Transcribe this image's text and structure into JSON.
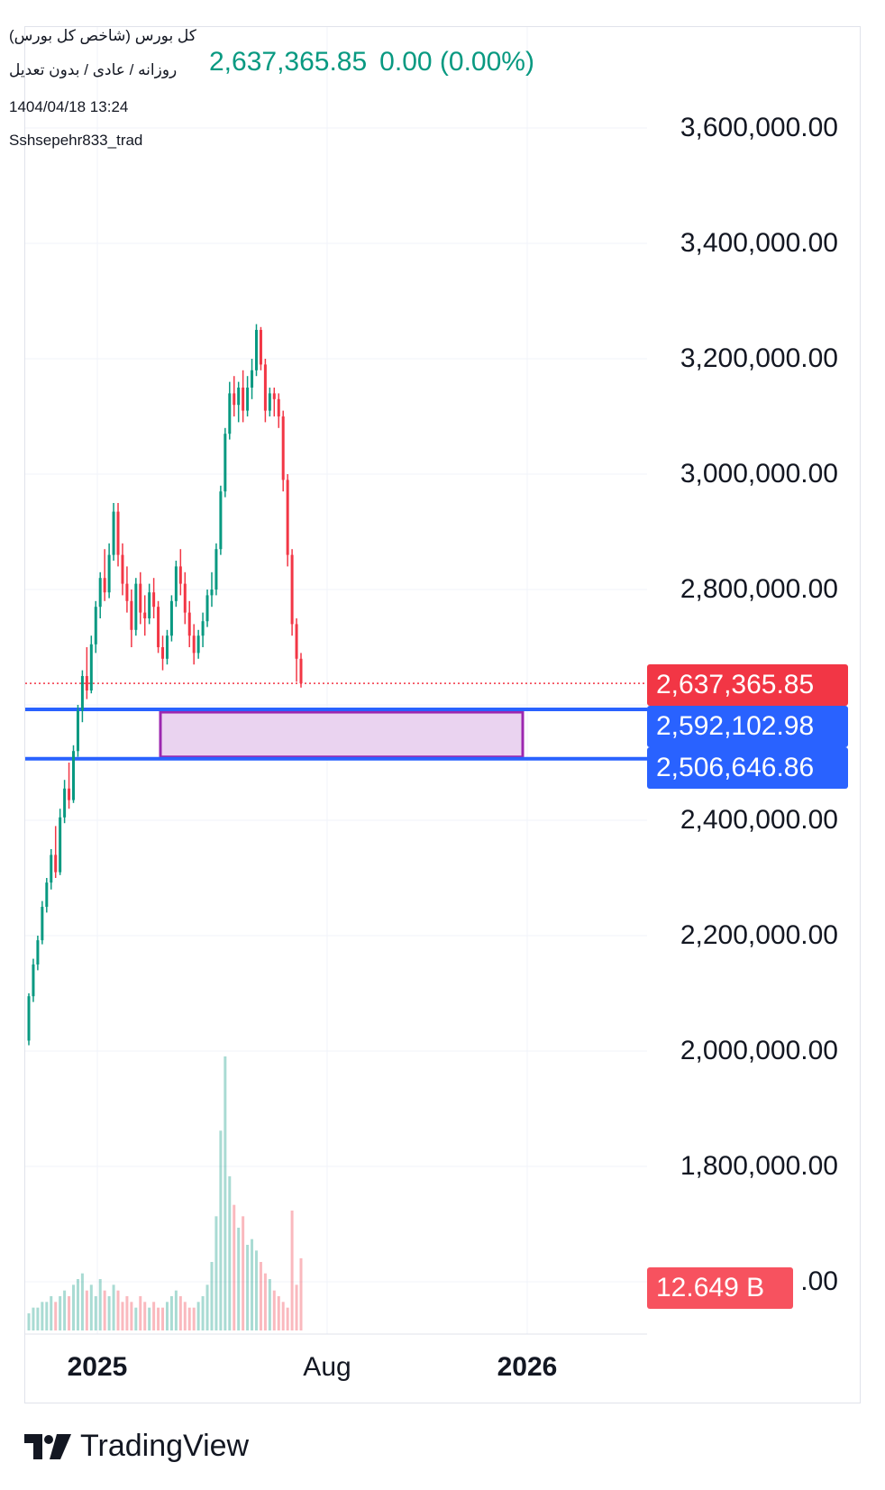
{
  "header": {
    "title": "کل بورس (شاخص کل بورس)",
    "interval": "روزانه / عادی / بدون تعدیل",
    "datetime": "1404/04/18 13:24",
    "user": "Sshsepehr833_trad",
    "price": "2,637,365.85",
    "change": "0.00 (0.00%)"
  },
  "colors": {
    "up": "#089981",
    "down": "#f23645",
    "box_fill": "#ead3f0",
    "box_border": "#9c27b0",
    "hline": "#2962ff",
    "last_price_tag": "#f23645",
    "hline_tag": "#2962ff",
    "volume_tag": "#f7525f"
  },
  "y_axis": {
    "labels": [
      "3,600,000.00",
      "3,400,000.00",
      "3,200,000.00",
      "3,000,000.00",
      "2,800,000.00",
      "2,400,000.00",
      "2,200,000.00",
      "2,000,000.00",
      "1,800,000.00",
      ".00"
    ]
  },
  "x_axis": {
    "labels": [
      {
        "text": "2025",
        "bold": true
      },
      {
        "text": "Aug",
        "bold": false
      },
      {
        "text": "2026",
        "bold": true
      }
    ]
  },
  "tags": {
    "last_price": "2,637,365.85",
    "hline_upper": "2,592,102.98",
    "hline_lower": "2,506,646.86",
    "volume": "12.649 B"
  },
  "branding": {
    "name": "TradingView"
  },
  "chart_data": {
    "type": "candlestick",
    "y_range": [
      1560000,
      3720000
    ],
    "last_price": 2637365.85,
    "horizontal_lines": [
      2592102.98,
      2506646.86
    ],
    "zone": {
      "top": 2592102.98,
      "bottom": 2506646.86
    },
    "candles": [
      [
        2018000,
        2100000,
        2010000,
        2095000
      ],
      [
        2095000,
        2160000,
        2085000,
        2150000
      ],
      [
        2150000,
        2200000,
        2140000,
        2192000
      ],
      [
        2192000,
        2260000,
        2185000,
        2250000
      ],
      [
        2250000,
        2300000,
        2240000,
        2292000
      ],
      [
        2292000,
        2350000,
        2280000,
        2340000
      ],
      [
        2340000,
        2390000,
        2300000,
        2310000
      ],
      [
        2310000,
        2420000,
        2305000,
        2405000
      ],
      [
        2405000,
        2470000,
        2395000,
        2455000
      ],
      [
        2455000,
        2500000,
        2420000,
        2435000
      ],
      [
        2435000,
        2530000,
        2430000,
        2520000
      ],
      [
        2520000,
        2600000,
        2510000,
        2590000
      ],
      [
        2590000,
        2660000,
        2570000,
        2650000
      ],
      [
        2650000,
        2700000,
        2610000,
        2625000
      ],
      [
        2625000,
        2720000,
        2620000,
        2705000
      ],
      [
        2705000,
        2780000,
        2690000,
        2770000
      ],
      [
        2770000,
        2830000,
        2750000,
        2820000
      ],
      [
        2820000,
        2870000,
        2780000,
        2795000
      ],
      [
        2795000,
        2880000,
        2785000,
        2860000
      ],
      [
        2860000,
        2950000,
        2850000,
        2935000
      ],
      [
        2935000,
        2950000,
        2840000,
        2860000
      ],
      [
        2860000,
        2880000,
        2790000,
        2810000
      ],
      [
        2810000,
        2840000,
        2760000,
        2780000
      ],
      [
        2780000,
        2800000,
        2700000,
        2730000
      ],
      [
        2730000,
        2820000,
        2720000,
        2810000
      ],
      [
        2810000,
        2830000,
        2740000,
        2760000
      ],
      [
        2760000,
        2790000,
        2720000,
        2750000
      ],
      [
        2750000,
        2810000,
        2740000,
        2795000
      ],
      [
        2795000,
        2820000,
        2750000,
        2770000
      ],
      [
        2770000,
        2780000,
        2690000,
        2700000
      ],
      [
        2700000,
        2720000,
        2660000,
        2680000
      ],
      [
        2680000,
        2730000,
        2670000,
        2720000
      ],
      [
        2720000,
        2790000,
        2710000,
        2780000
      ],
      [
        2780000,
        2850000,
        2770000,
        2840000
      ],
      [
        2840000,
        2870000,
        2790000,
        2810000
      ],
      [
        2810000,
        2830000,
        2740000,
        2760000
      ],
      [
        2760000,
        2780000,
        2700000,
        2720000
      ],
      [
        2720000,
        2740000,
        2670000,
        2690000
      ],
      [
        2690000,
        2730000,
        2680000,
        2720000
      ],
      [
        2720000,
        2760000,
        2700000,
        2745000
      ],
      [
        2745000,
        2800000,
        2735000,
        2790000
      ],
      [
        2790000,
        2830000,
        2770000,
        2800000
      ],
      [
        2800000,
        2880000,
        2790000,
        2870000
      ],
      [
        2870000,
        2980000,
        2860000,
        2970000
      ],
      [
        2970000,
        3080000,
        2960000,
        3070000
      ],
      [
        3070000,
        3160000,
        3060000,
        3140000
      ],
      [
        3140000,
        3170000,
        3100000,
        3120000
      ],
      [
        3120000,
        3160000,
        3090000,
        3150000
      ],
      [
        3150000,
        3180000,
        3090000,
        3110000
      ],
      [
        3110000,
        3170000,
        3100000,
        3150000
      ],
      [
        3150000,
        3200000,
        3130000,
        3180000
      ],
      [
        3180000,
        3260000,
        3170000,
        3250000
      ],
      [
        3250000,
        3255000,
        3180000,
        3190000
      ],
      [
        3190000,
        3200000,
        3090000,
        3110000
      ],
      [
        3110000,
        3150000,
        3100000,
        3140000
      ],
      [
        3140000,
        3150000,
        3100000,
        3130000
      ],
      [
        3130000,
        3140000,
        3080000,
        3100000
      ],
      [
        3100000,
        3110000,
        2970000,
        2990000
      ],
      [
        2990000,
        3000000,
        2840000,
        2860000
      ],
      [
        2860000,
        2870000,
        2720000,
        2740000
      ],
      [
        2740000,
        2750000,
        2640000,
        2680000
      ],
      [
        2680000,
        2690000,
        2630000,
        2637365.85
      ]
    ],
    "volume": {
      "unit": "B",
      "last": 12.649,
      "values": [
        3,
        4,
        4,
        5,
        5,
        6,
        5,
        6,
        7,
        6,
        8,
        9,
        10,
        7,
        8,
        6,
        9,
        7,
        6,
        8,
        7,
        5,
        6,
        5,
        4,
        6,
        5,
        4,
        5,
        4,
        4,
        5,
        6,
        7,
        6,
        5,
        4,
        4,
        5,
        6,
        8,
        12,
        20,
        35,
        48,
        27,
        22,
        18,
        20,
        15,
        16,
        14,
        12,
        10,
        9,
        7,
        6,
        5,
        4,
        21,
        8,
        12.649
      ]
    }
  }
}
